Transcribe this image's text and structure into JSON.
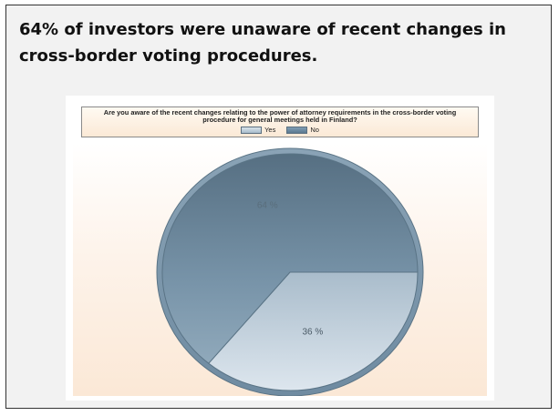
{
  "slide": {
    "headline_line1": "64% of investors were unaware of recent changes in",
    "headline_line2": "cross-border voting procedures."
  },
  "chart_data": {
    "type": "pie",
    "title": "Are you aware of the recent changes relating to the power of attorney requirements in the cross-border voting procedure for general meetings held in Finland?",
    "categories": [
      "Yes",
      "No"
    ],
    "values": [
      36,
      64
    ],
    "labels": [
      "36 %",
      "64 %"
    ],
    "legend_position": "top",
    "colors": {
      "Yes": "#c3d2dd",
      "No": "#6f8ba1",
      "edge": "#5a7486",
      "background_top": "#ffffff",
      "background_bottom": "#fbe8d6"
    }
  }
}
